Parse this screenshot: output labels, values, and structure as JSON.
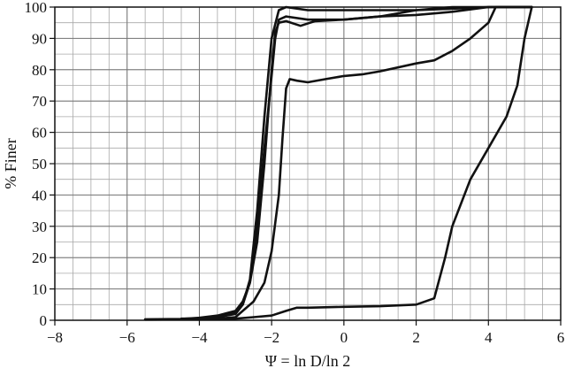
{
  "chart_data": {
    "type": "line",
    "title": "",
    "xlabel": "Ψ = ln D/ln 2",
    "ylabel": "% Finer",
    "xlim": [
      -8,
      6
    ],
    "ylim": [
      0,
      100
    ],
    "x_ticks": [
      -8,
      -6,
      -4,
      -2,
      0,
      2,
      4,
      6
    ],
    "y_ticks": [
      0,
      10,
      20,
      30,
      40,
      50,
      60,
      70,
      80,
      90,
      100
    ],
    "grid": true,
    "minor_grid": {
      "x_step": 0.5,
      "y_step": 5
    },
    "line_color": "#111111",
    "series": [
      {
        "points": [
          [
            -5.5,
            0.3
          ],
          [
            -4.5,
            0.4
          ],
          [
            -4,
            0.8
          ],
          [
            -3.5,
            1.5
          ],
          [
            -3,
            3
          ],
          [
            -2.8,
            6
          ],
          [
            -2.6,
            12
          ],
          [
            -2.4,
            30
          ],
          [
            -2.2,
            55
          ],
          [
            -2,
            78
          ],
          [
            -1.9,
            90
          ],
          [
            -1.8,
            96
          ],
          [
            -1.6,
            97
          ],
          [
            -1,
            96
          ],
          [
            0,
            96
          ],
          [
            1,
            97
          ],
          [
            2,
            99
          ],
          [
            3,
            100
          ],
          [
            5.2,
            100
          ]
        ]
      },
      {
        "points": [
          [
            -4.5,
            0.5
          ],
          [
            -4,
            0.6
          ],
          [
            -3.5,
            1
          ],
          [
            -3,
            2.5
          ],
          [
            -2.8,
            5
          ],
          [
            -2.6,
            13
          ],
          [
            -2.4,
            35
          ],
          [
            -2.2,
            65
          ],
          [
            -2,
            90
          ],
          [
            -1.8,
            99
          ],
          [
            -1.6,
            100
          ],
          [
            -1,
            99
          ],
          [
            0,
            99
          ],
          [
            2,
            99
          ],
          [
            3,
            99.5
          ],
          [
            4,
            100
          ],
          [
            5.2,
            100
          ]
        ]
      },
      {
        "points": [
          [
            -4.2,
            0.4
          ],
          [
            -3.5,
            1
          ],
          [
            -3,
            2
          ],
          [
            -2.8,
            5
          ],
          [
            -2.6,
            12
          ],
          [
            -2.4,
            25
          ],
          [
            -2.2,
            50
          ],
          [
            -2,
            80
          ],
          [
            -1.9,
            92
          ],
          [
            -1.8,
            95
          ],
          [
            -1.6,
            95.5
          ],
          [
            -1.2,
            94
          ],
          [
            -0.8,
            95.5
          ],
          [
            0,
            96
          ],
          [
            1,
            97
          ],
          [
            2,
            97.5
          ],
          [
            3,
            98.5
          ],
          [
            4,
            100
          ],
          [
            5.2,
            100
          ]
        ]
      },
      {
        "points": [
          [
            -3.5,
            0.5
          ],
          [
            -3,
            1
          ],
          [
            -2.8,
            3
          ],
          [
            -2.5,
            6
          ],
          [
            -2.2,
            12
          ],
          [
            -2,
            22
          ],
          [
            -1.8,
            40
          ],
          [
            -1.7,
            58
          ],
          [
            -1.6,
            74
          ],
          [
            -1.5,
            77
          ],
          [
            -1.3,
            76.5
          ],
          [
            -1,
            76
          ],
          [
            -0.5,
            77
          ],
          [
            0,
            78
          ],
          [
            0.5,
            78.5
          ],
          [
            1,
            79.5
          ],
          [
            2,
            82
          ],
          [
            2.5,
            83
          ],
          [
            3,
            86
          ],
          [
            3.5,
            90
          ],
          [
            4,
            95
          ],
          [
            4.2,
            100
          ],
          [
            5.2,
            100
          ]
        ]
      },
      {
        "points": [
          [
            -5.5,
            0.2
          ],
          [
            -4,
            0.3
          ],
          [
            -3,
            0.5
          ],
          [
            -2.5,
            1
          ],
          [
            -2,
            1.5
          ],
          [
            -1.6,
            3
          ],
          [
            -1.3,
            4
          ],
          [
            -1,
            4
          ],
          [
            0,
            4.3
          ],
          [
            1,
            4.5
          ],
          [
            2,
            5
          ],
          [
            2.5,
            7
          ],
          [
            2.8,
            20
          ],
          [
            3,
            30
          ],
          [
            3.5,
            45
          ],
          [
            4,
            55
          ],
          [
            4.5,
            65
          ],
          [
            4.8,
            75
          ],
          [
            5,
            90
          ],
          [
            5.2,
            100
          ]
        ]
      }
    ]
  }
}
